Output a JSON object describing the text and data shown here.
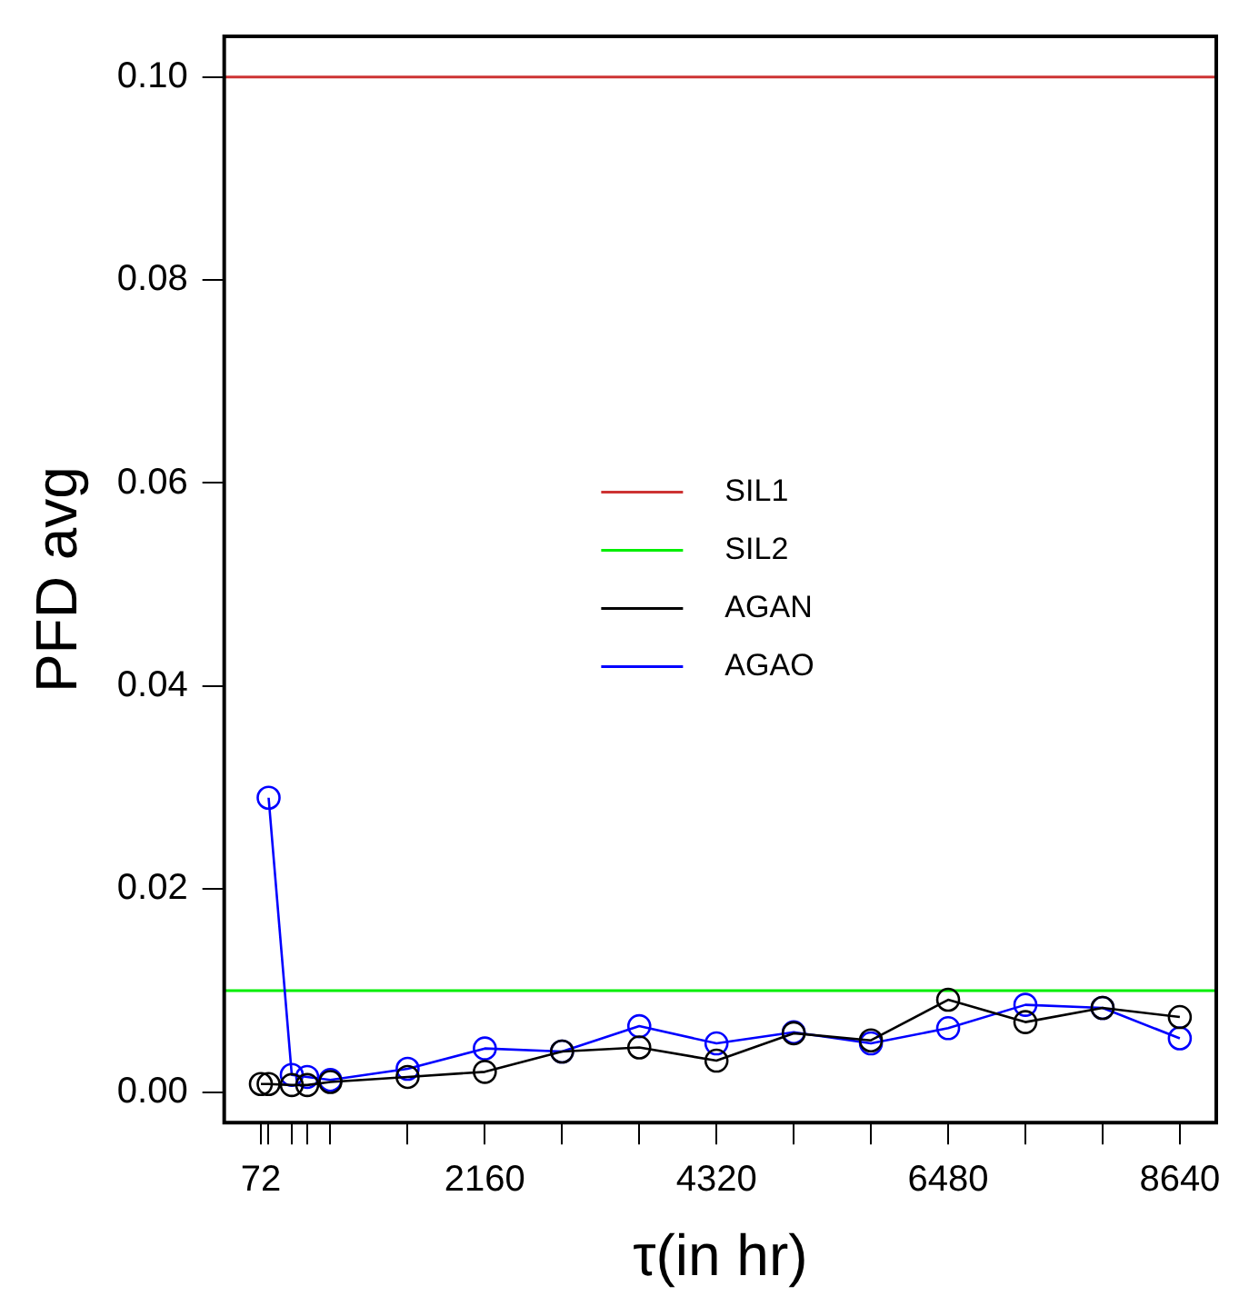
{
  "chart_data": {
    "type": "line",
    "xlabel": "τ(in hr)",
    "ylabel": "PFD avg",
    "x": [
      72,
      144,
      360,
      504,
      720,
      1440,
      2160,
      2880,
      3600,
      4320,
      5040,
      5760,
      6480,
      7200,
      7920,
      8640
    ],
    "series": [
      {
        "name": "AGAN",
        "color": "#000000",
        "values": [
          0.0008,
          0.0008,
          0.0007,
          0.0007,
          0.001,
          0.0015,
          0.002,
          0.004,
          0.0044,
          0.0031,
          0.0058,
          0.0051,
          0.0091,
          0.0069,
          0.0083,
          0.0074
        ]
      },
      {
        "name": "AGAO",
        "color": "#0000ff",
        "values": [
          null,
          0.029,
          0.0017,
          0.0015,
          0.0012,
          0.0023,
          0.0043,
          0.004,
          0.0065,
          0.0048,
          0.0059,
          0.0048,
          0.0063,
          0.0086,
          0.0083,
          0.0053
        ]
      }
    ],
    "ref_lines": [
      {
        "axis": "y",
        "value": 0.1,
        "label": "SIL1",
        "color": "#cd3333"
      },
      {
        "axis": "y",
        "value": 0.01,
        "label": "SIL2",
        "color": "#00ee00"
      }
    ],
    "xlim": [
      -270,
      8980
    ],
    "ylim": [
      -0.003,
      0.104
    ],
    "xticks": [
      72,
      {
        "value": 144,
        "label": null
      },
      {
        "value": 360,
        "label": null
      },
      {
        "value": 504,
        "label": null
      },
      {
        "value": 720,
        "label": null
      },
      {
        "value": 1440,
        "label": null
      },
      2160,
      {
        "value": 2880,
        "label": null
      },
      {
        "value": 3600,
        "label": null
      },
      4320,
      {
        "value": 5040,
        "label": null
      },
      {
        "value": 5760,
        "label": null
      },
      6480,
      {
        "value": 7200,
        "label": null
      },
      {
        "value": 7920,
        "label": null
      },
      8640
    ],
    "yticks": [
      {
        "value": 0,
        "label": "0.00"
      },
      {
        "value": 0.02,
        "label": "0.02"
      },
      {
        "value": 0.04,
        "label": "0.04"
      },
      {
        "value": 0.06,
        "label": "0.06"
      },
      {
        "value": 0.08,
        "label": "0.08"
      },
      {
        "value": 0.1,
        "label": "0.10"
      }
    ],
    "grid": false,
    "legend": "center",
    "marker": "circle",
    "line_style": "solid"
  }
}
